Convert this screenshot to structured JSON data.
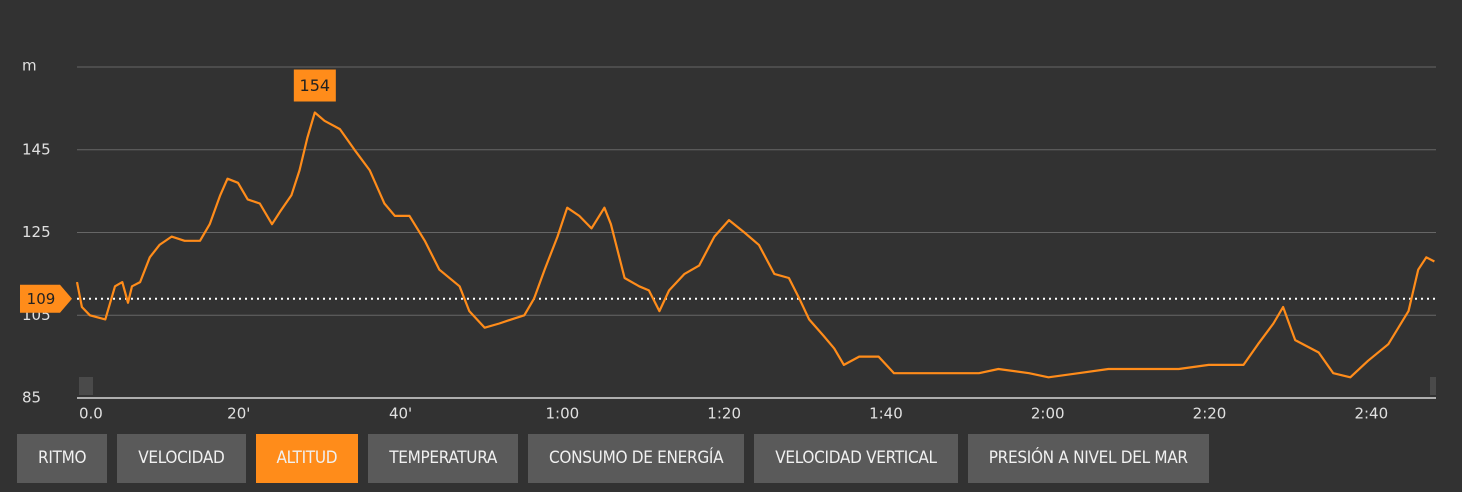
{
  "chart_data": {
    "type": "line",
    "y_label": "m",
    "color": "#ff8c1a",
    "xlim": [
      0,
      168
    ],
    "ylim": [
      85,
      165
    ],
    "yticks": [
      85,
      105,
      125,
      145
    ],
    "xticks": [
      {
        "value": 0,
        "label": "0.0"
      },
      {
        "value": 20,
        "label": "20'"
      },
      {
        "value": 40,
        "label": "40'"
      },
      {
        "value": 60,
        "label": "1:00"
      },
      {
        "value": 80,
        "label": "1:20"
      },
      {
        "value": 100,
        "label": "1:40"
      },
      {
        "value": 120,
        "label": "2:00"
      },
      {
        "value": 140,
        "label": "2:20"
      },
      {
        "value": 160,
        "label": "2:40"
      }
    ],
    "grid": true,
    "reference_line": {
      "value": 109
    },
    "annotations": [
      {
        "x": 29.4,
        "value": 154
      }
    ],
    "x": [
      0,
      0.6,
      1.6,
      3.5,
      4.7,
      5.6,
      6.3,
      6.8,
      7.8,
      9.0,
      10.2,
      11.7,
      13.3,
      15.2,
      16.4,
      17.7,
      18.6,
      19.9,
      21.1,
      22.6,
      24.1,
      25.1,
      26.5,
      27.5,
      28.5,
      29.4,
      30.6,
      32.5,
      34.3,
      36.2,
      38.0,
      39.3,
      41.1,
      43.0,
      44.8,
      47.3,
      48.5,
      50.4,
      52.2,
      53.7,
      55.3,
      56.5,
      57.8,
      59.4,
      60.6,
      62.1,
      63.6,
      65.2,
      66.0,
      67.7,
      69.5,
      70.7,
      72.0,
      73.2,
      75.1,
      76.9,
      78.8,
      80.6,
      82.5,
      84.3,
      86.2,
      88.0,
      89.3,
      90.5,
      92.3,
      93.6,
      94.8,
      96.7,
      99.1,
      101.0,
      102.8,
      105.3,
      107.8,
      111.5,
      113.9,
      117.7,
      120.1,
      123.8,
      127.5,
      131.2,
      136.2,
      139.9,
      144.2,
      146.0,
      147.9,
      149.1,
      150.6,
      153.5,
      155.3,
      157.4,
      159.6,
      162.1,
      164.6,
      165.8,
      166.8,
      167.8
    ],
    "values": [
      113,
      107,
      105,
      104,
      112,
      113,
      108,
      112,
      113,
      119,
      122,
      124,
      123,
      123,
      127,
      134,
      138,
      137,
      133,
      132,
      127,
      130,
      134,
      140,
      148,
      154,
      152,
      150,
      145,
      140,
      132,
      129,
      129,
      123,
      116,
      112,
      106,
      102,
      103,
      104,
      105,
      109,
      116,
      124,
      131,
      129,
      126,
      131,
      127,
      114,
      112,
      111,
      106,
      111,
      115,
      117,
      124,
      128,
      125,
      122,
      115,
      114,
      109,
      104,
      100,
      97,
      93,
      95,
      95,
      91,
      91,
      91,
      91,
      91,
      92,
      91,
      90,
      91,
      92,
      92,
      92,
      93,
      93,
      98,
      103,
      107,
      99,
      96,
      91,
      90,
      94,
      98,
      106,
      116,
      119,
      118
    ]
  },
  "tabs": [
    "RITMO",
    "VELOCIDAD",
    "ALTITUD",
    "TEMPERATURA",
    "CONSUMO DE ENERGÍA",
    "VELOCIDAD VERTICAL",
    "PRESIÓN A NIVEL DEL MAR"
  ],
  "active_tab": 2
}
